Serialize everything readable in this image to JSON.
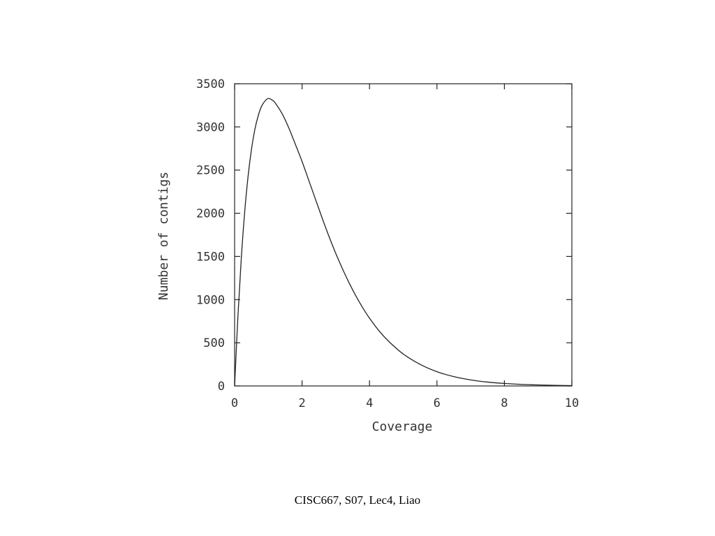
{
  "footer": "CISC667, S07, Lec4, Liao",
  "chart_data": {
    "type": "line",
    "title": "",
    "xlabel": "Coverage",
    "ylabel": "Number of contigs",
    "xlim": [
      0,
      10
    ],
    "ylim": [
      0,
      3500
    ],
    "xticks": [
      0,
      2,
      4,
      6,
      8,
      10
    ],
    "yticks": [
      0,
      500,
      1000,
      1500,
      2000,
      2500,
      3000,
      3500
    ],
    "grid": false,
    "line_color": "#222222",
    "series": [
      {
        "x": [
          0,
          0.1,
          0.2,
          0.3,
          0.4,
          0.5,
          0.6,
          0.7,
          0.8,
          0.9,
          1.0,
          1.1,
          1.2,
          1.4,
          1.6,
          1.8,
          2.0,
          2.2,
          2.4,
          2.6,
          2.8,
          3.0,
          3.2,
          3.4,
          3.6,
          3.8,
          4.0,
          4.3,
          4.6,
          5.0,
          5.5,
          6.0,
          6.5,
          7.0,
          7.5,
          8.0,
          8.5,
          9.0,
          9.5,
          10.0
        ],
        "values": [
          0,
          820,
          1490,
          2020,
          2430,
          2740,
          2970,
          3130,
          3240,
          3300,
          3330,
          3315,
          3280,
          3160,
          2995,
          2800,
          2600,
          2380,
          2160,
          1940,
          1730,
          1535,
          1355,
          1190,
          1040,
          905,
          785,
          630,
          505,
          370,
          250,
          165,
          108,
          70,
          45,
          29,
          18,
          12,
          7,
          4
        ]
      }
    ]
  }
}
